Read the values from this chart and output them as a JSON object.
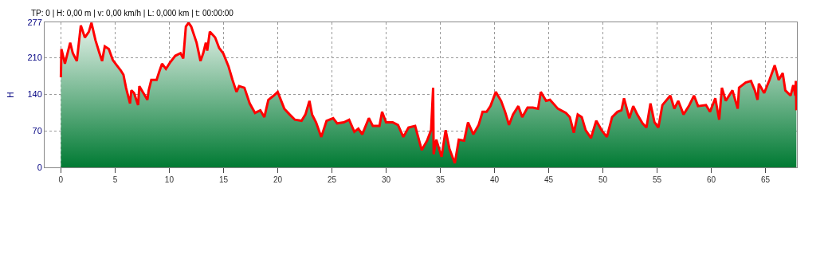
{
  "chart_data": {
    "type": "area",
    "ylabel": "H",
    "annotations": [
      "TP: 0 | H: 0,00 m | v: 0,00 km/h | L: 0,000 km | t: 00:00:00"
    ],
    "xlim": [
      -1.5,
      67.9
    ],
    "xticks": [
      0,
      5,
      10,
      15,
      20,
      25,
      30,
      35,
      40,
      45,
      50,
      55,
      60,
      65
    ],
    "ylim": [
      0,
      277
    ],
    "yticks": [
      0,
      70,
      140,
      210,
      277
    ],
    "grid": true,
    "marker": "none",
    "line_style": "solid",
    "series": [
      {
        "color": "#ff0000",
        "x": [
          0,
          0.05,
          0.37,
          0.86,
          1.1,
          1.47,
          1.84,
          2.21,
          2.58,
          2.82,
          3.19,
          3.56,
          3.8,
          4.05,
          4.42,
          4.79,
          5.15,
          5.52,
          5.77,
          6.01,
          6.38,
          6.5,
          6.75,
          6.99,
          7.12,
          7.24,
          7.61,
          7.98,
          8.1,
          8.34,
          8.83,
          9.08,
          9.33,
          9.69,
          10.06,
          10.55,
          11.04,
          11.29,
          11.53,
          11.78,
          12.02,
          12.52,
          12.88,
          13.13,
          13.37,
          13.5,
          13.74,
          14.23,
          14.6,
          14.97,
          15.46,
          15.83,
          16.2,
          16.44,
          16.93,
          17.42,
          17.91,
          18.4,
          18.77,
          19.14,
          19.63,
          20.0,
          20.61,
          21.1,
          21.59,
          22.2,
          22.56,
          22.93,
          23.17,
          23.54,
          24.02,
          24.51,
          25.12,
          25.49,
          26.1,
          26.59,
          27.07,
          27.44,
          27.8,
          28.41,
          28.78,
          29.39,
          29.63,
          30.0,
          30.61,
          31.1,
          31.59,
          32.07,
          32.68,
          33.29,
          33.78,
          34.15,
          34.34,
          34.39,
          34.63,
          35.12,
          35.49,
          35.85,
          36.34,
          36.71,
          37.2,
          37.56,
          38.05,
          38.54,
          38.9,
          39.27,
          39.63,
          40.12,
          40.61,
          40.98,
          41.34,
          41.71,
          42.2,
          42.56,
          43.05,
          43.54,
          44.02,
          44.27,
          44.76,
          45.12,
          45.85,
          46.59,
          46.95,
          47.32,
          47.68,
          48.05,
          48.41,
          48.9,
          49.39,
          49.88,
          50.37,
          50.85,
          51.34,
          51.71,
          51.95,
          52.44,
          52.8,
          53.17,
          53.66,
          54.02,
          54.39,
          54.76,
          55.12,
          55.49,
          56.22,
          56.59,
          56.95,
          57.44,
          57.93,
          58.41,
          58.78,
          59.51,
          59.88,
          60.37,
          60.73,
          60.98,
          61.34,
          61.95,
          62.44,
          62.56,
          63.17,
          63.66,
          64.02,
          64.27,
          64.39,
          64.88,
          65.37,
          65.85,
          66.22,
          66.59,
          66.83,
          67.32,
          67.56,
          67.76,
          67.8,
          67.85
        ],
        "values": [
          172,
          226,
          198,
          238,
          218,
          203,
          271,
          248,
          259,
          276,
          243,
          218,
          203,
          231,
          226,
          205,
          195,
          185,
          177,
          152,
          122,
          147,
          142,
          127,
          119,
          155,
          142,
          129,
          147,
          167,
          167,
          183,
          198,
          188,
          200,
          213,
          218,
          208,
          269,
          276,
          269,
          238,
          203,
          218,
          238,
          223,
          259,
          248,
          228,
          218,
          193,
          167,
          144,
          155,
          152,
          122,
          104,
          109,
          96,
          129,
          137,
          144,
          112,
          101,
          91,
          89,
          101,
          127,
          101,
          86,
          58,
          89,
          94,
          84,
          86,
          91,
          68,
          74,
          63,
          94,
          79,
          79,
          106,
          86,
          86,
          81,
          58,
          76,
          79,
          33,
          51,
          71,
          152,
          25,
          53,
          20,
          71,
          35,
          8,
          53,
          51,
          86,
          63,
          81,
          106,
          106,
          117,
          144,
          127,
          106,
          81,
          101,
          117,
          96,
          114,
          114,
          112,
          144,
          127,
          129,
          112,
          104,
          96,
          66,
          101,
          96,
          71,
          56,
          89,
          71,
          58,
          96,
          106,
          109,
          132,
          94,
          117,
          101,
          84,
          76,
          122,
          86,
          76,
          119,
          137,
          112,
          127,
          101,
          117,
          137,
          117,
          119,
          106,
          132,
          91,
          152,
          127,
          147,
          112,
          152,
          162,
          165,
          147,
          129,
          160,
          142,
          167,
          195,
          167,
          180,
          147,
          137,
          157,
          137,
          165,
          109
        ]
      }
    ]
  }
}
